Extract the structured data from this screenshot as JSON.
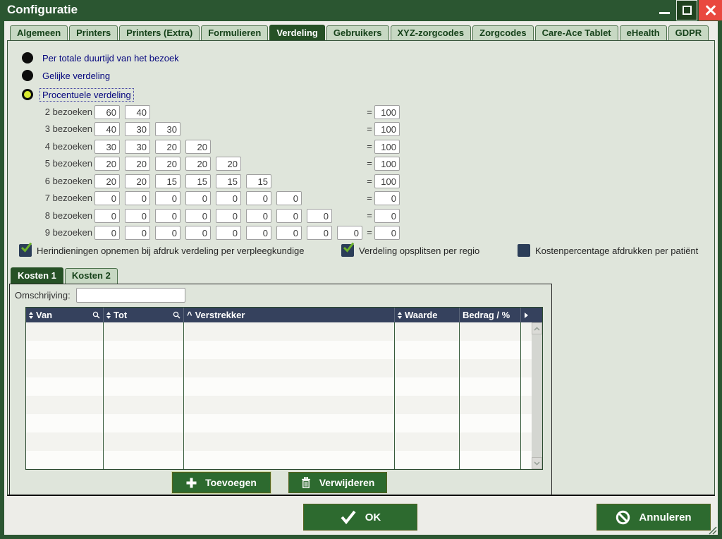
{
  "window": {
    "title": "Configuratie",
    "controls": [
      "minimize",
      "maximize",
      "close"
    ]
  },
  "tabs": {
    "items": [
      {
        "label": "Algemeen",
        "active": false
      },
      {
        "label": "Printers",
        "active": false
      },
      {
        "label": "Printers (Extra)",
        "active": false
      },
      {
        "label": "Formulieren",
        "active": false
      },
      {
        "label": "Verdeling",
        "active": true
      },
      {
        "label": "Gebruikers",
        "active": false
      },
      {
        "label": "XYZ-zorgcodes",
        "active": false
      },
      {
        "label": "Zorgcodes",
        "active": false
      },
      {
        "label": "Care-Ace Tablet",
        "active": false
      },
      {
        "label": "eHealth",
        "active": false
      },
      {
        "label": "GDPR",
        "active": false
      }
    ]
  },
  "radios": {
    "items": [
      {
        "label": "Per totale duurtijd van het bezoek",
        "selected": false,
        "focused": false
      },
      {
        "label": "Gelijke verdeling",
        "selected": false,
        "focused": false
      },
      {
        "label": "Procentuele verdeling",
        "selected": true,
        "focused": true
      }
    ]
  },
  "percent": {
    "equals_sign": "=",
    "rows": [
      {
        "label": "2 bezoeken",
        "values": [
          "60",
          "40"
        ],
        "total": "100"
      },
      {
        "label": "3 bezoeken",
        "values": [
          "40",
          "30",
          "30"
        ],
        "total": "100"
      },
      {
        "label": "4 bezoeken",
        "values": [
          "30",
          "30",
          "20",
          "20"
        ],
        "total": "100"
      },
      {
        "label": "5 bezoeken",
        "values": [
          "20",
          "20",
          "20",
          "20",
          "20"
        ],
        "total": "100"
      },
      {
        "label": "6 bezoeken",
        "values": [
          "20",
          "20",
          "15",
          "15",
          "15",
          "15"
        ],
        "total": "100"
      },
      {
        "label": "7 bezoeken",
        "values": [
          "0",
          "0",
          "0",
          "0",
          "0",
          "0",
          "0"
        ],
        "total": "0"
      },
      {
        "label": "8 bezoeken",
        "values": [
          "0",
          "0",
          "0",
          "0",
          "0",
          "0",
          "0",
          "0"
        ],
        "total": "0"
      },
      {
        "label": "9 bezoeken",
        "values": [
          "0",
          "0",
          "0",
          "0",
          "0",
          "0",
          "0",
          "0",
          "0"
        ],
        "total": "0"
      }
    ]
  },
  "checkboxes": {
    "items": [
      {
        "label": "Herindieningen opnemen bij afdruk verdeling per verpleegkundige",
        "checked": true
      },
      {
        "label": "Verdeling opsplitsen per regio",
        "checked": true
      },
      {
        "label": "Kostenpercentage afdrukken per patiënt",
        "checked": false
      }
    ]
  },
  "kosten": {
    "tabs": [
      {
        "label": "Kosten 1",
        "active": true
      },
      {
        "label": "Kosten 2",
        "active": false
      }
    ],
    "omschrijving_label": "Omschrijving:",
    "omschrijving_value": "",
    "table": {
      "columns": [
        {
          "label": "Van",
          "sort": "updown",
          "search": true
        },
        {
          "label": "Tot",
          "sort": "updown",
          "search": true
        },
        {
          "label": "Verstrekker",
          "sort": "caret",
          "search": false
        },
        {
          "label": "Waarde",
          "sort": "updown",
          "search": false
        },
        {
          "label": "Bedrag / %",
          "sort": "none",
          "search": false
        }
      ],
      "row_count": 8,
      "rows_empty": true
    },
    "buttons": [
      {
        "label": "Toevoegen",
        "icon": "plus-icon"
      },
      {
        "label": "Verwijderen",
        "icon": "trash-icon"
      }
    ]
  },
  "footer": {
    "ok_label": "OK",
    "cancel_label": "Annuleren"
  },
  "colors": {
    "window_green": "#2b5631",
    "active_tab_green": "#265126",
    "page_bg": "#dfe5db",
    "table_header_navy": "#35415d",
    "action_button_green": "#2d6a2f",
    "close_red": "#e9483f",
    "check_green": "#6db32b",
    "radio_selected_fill": "#d9e92f",
    "label_navy": "#05067e"
  }
}
